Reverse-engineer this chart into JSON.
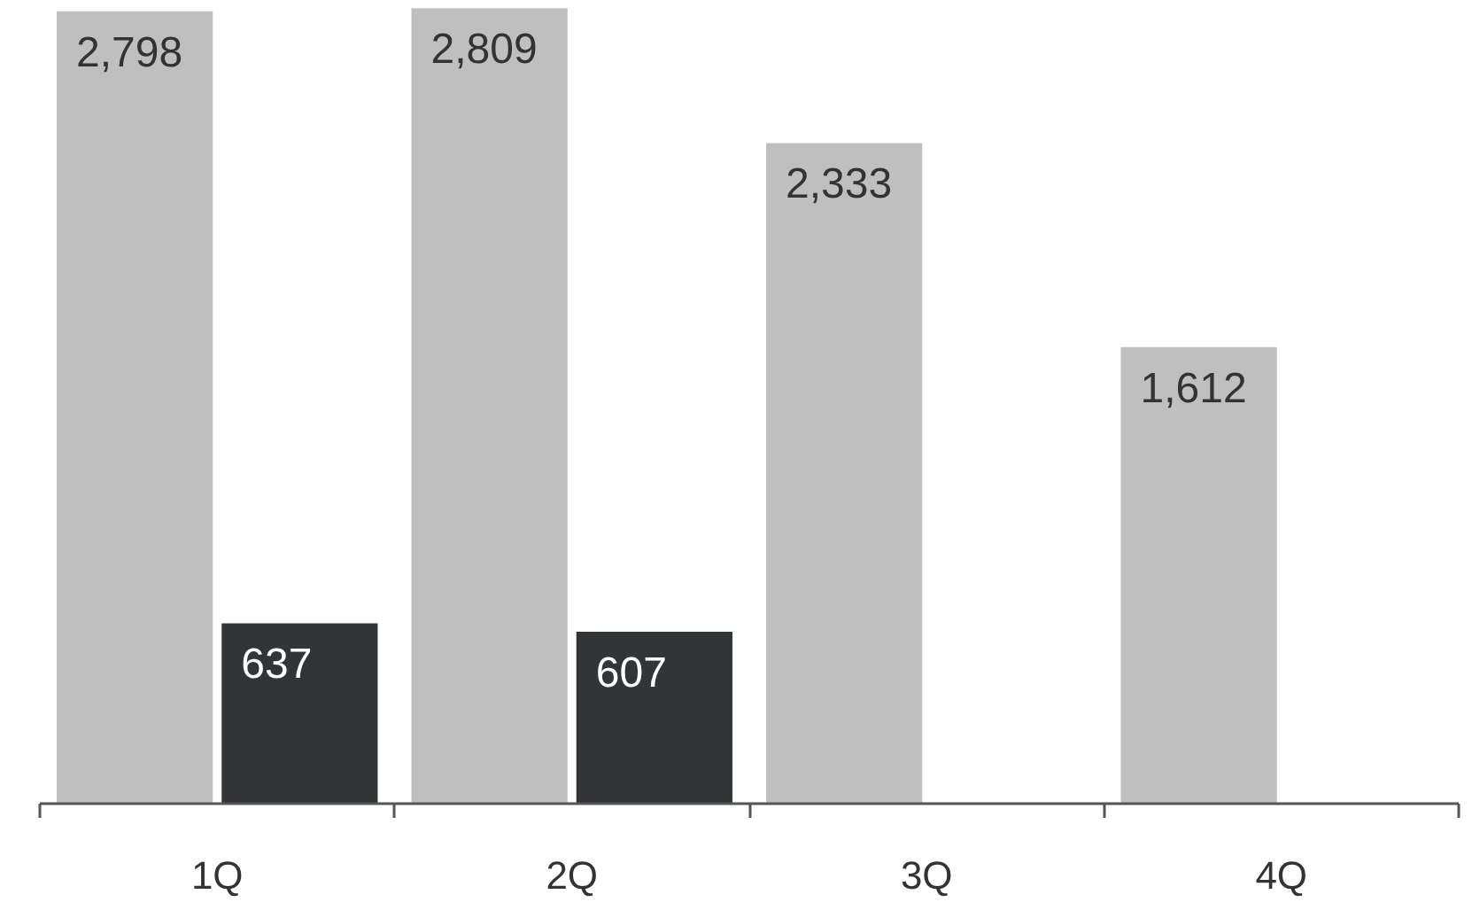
{
  "chart_data": {
    "type": "bar",
    "categories": [
      "1Q",
      "2Q",
      "3Q",
      "4Q"
    ],
    "series": [
      {
        "color": "#bfbfbf",
        "values": [
          2798,
          2809,
          2333,
          1612
        ],
        "value_labels": [
          "2,798",
          "2,809",
          "2,333",
          "1,612"
        ]
      },
      {
        "color": "#323538",
        "values": [
          637,
          607,
          null,
          null
        ],
        "value_labels": [
          "637",
          "607",
          null,
          null
        ]
      }
    ],
    "ylim": [
      0,
      2810
    ],
    "tick_labels": "x"
  }
}
